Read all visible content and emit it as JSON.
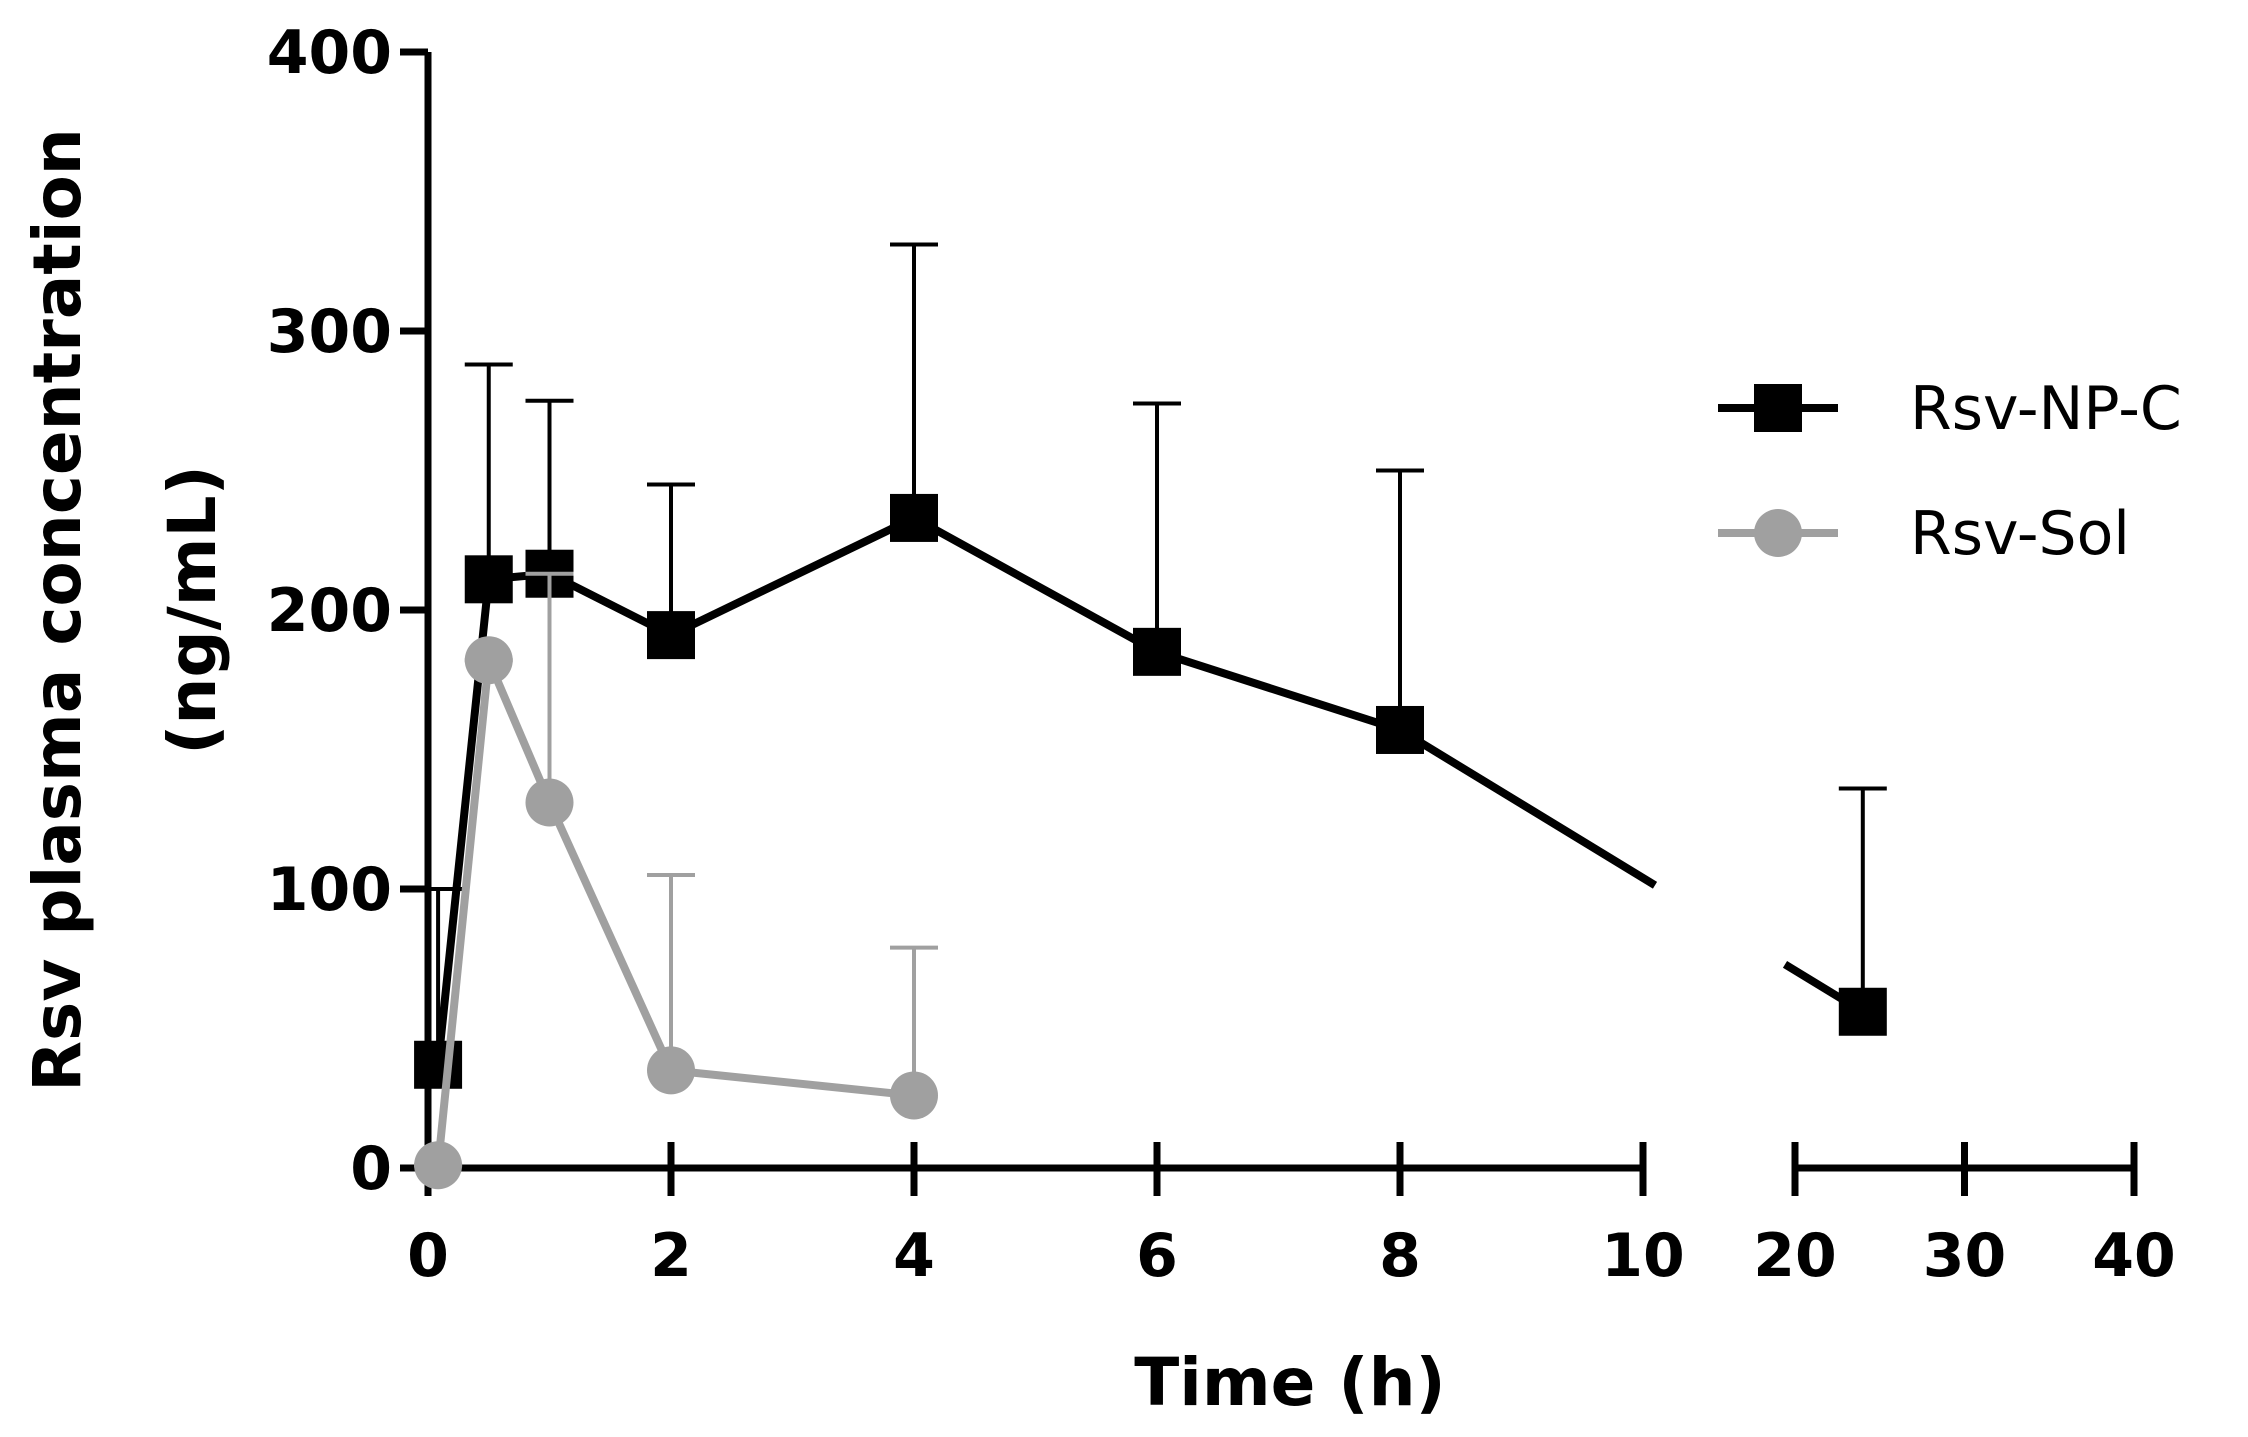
{
  "chart_data": {
    "type": "line",
    "title": "",
    "xlabel": "Time (h)",
    "ylabel": [
      "Rsv plasma concentration",
      "(ng/mL)"
    ],
    "ylim": [
      0,
      400
    ],
    "yticks": [
      0,
      100,
      200,
      300,
      400
    ],
    "x_segments": [
      {
        "range": [
          0,
          10
        ],
        "ticks": [
          0,
          2,
          4,
          6,
          8,
          10
        ]
      },
      {
        "range": [
          20,
          40
        ],
        "ticks": [
          20,
          30,
          40
        ]
      }
    ],
    "legend": {
      "position": "right",
      "entries": [
        "Rsv-NP-C",
        "Rsv-Sol"
      ]
    },
    "series": [
      {
        "name": "Rsv-NP-C",
        "color": "#000000",
        "marker": "square",
        "points": [
          {
            "x": 0.083,
            "y": 37,
            "err": 100
          },
          {
            "x": 0.5,
            "y": 211,
            "err": 288
          },
          {
            "x": 1,
            "y": 213,
            "err": 275
          },
          {
            "x": 2,
            "y": 191,
            "err": 245
          },
          {
            "x": 4,
            "y": 233,
            "err": 331
          },
          {
            "x": 6,
            "y": 185,
            "err": 274
          },
          {
            "x": 8,
            "y": 157,
            "err": 250
          },
          {
            "x": 24,
            "y": 56,
            "err": 136
          }
        ]
      },
      {
        "name": "Rsv-Sol",
        "color": "#a0a0a0",
        "marker": "circle",
        "points": [
          {
            "x": 0.083,
            "y": 1,
            "err": 1
          },
          {
            "x": 0.5,
            "y": 182,
            "err": 182
          },
          {
            "x": 1,
            "y": 131,
            "err": 213
          },
          {
            "x": 2,
            "y": 35,
            "err": 105
          },
          {
            "x": 4,
            "y": 26,
            "err": 79
          }
        ]
      }
    ]
  }
}
